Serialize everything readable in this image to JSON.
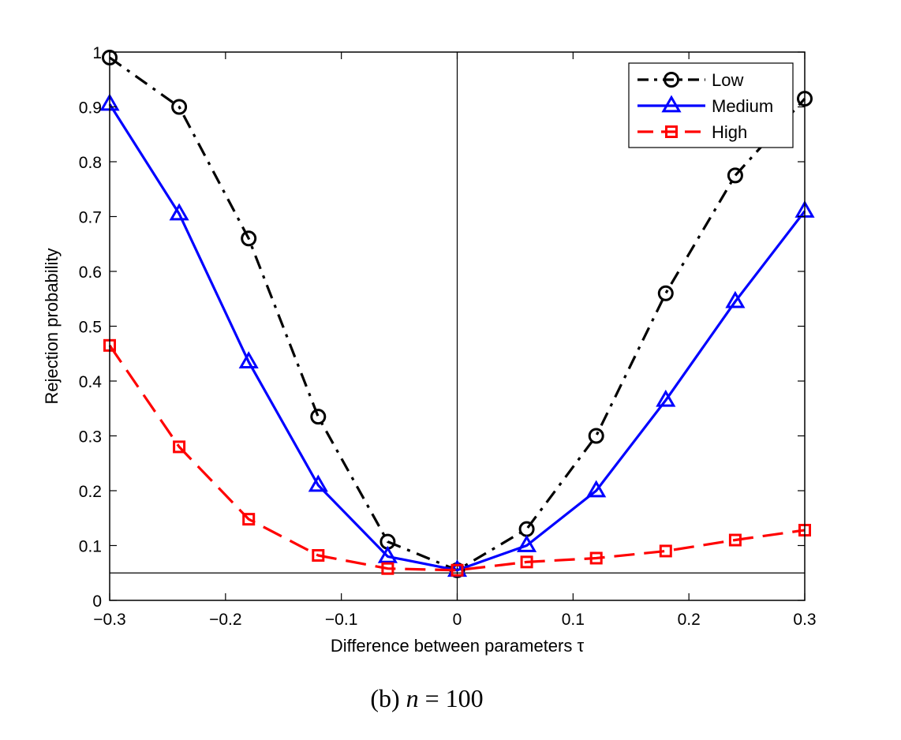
{
  "chart_data": {
    "type": "line",
    "caption_prefix": "(b) ",
    "caption_var": "n",
    "caption_rest": " = 100",
    "xlabel": "Difference between parameters τ",
    "ylabel": "Rejection probability",
    "xlim": [
      -0.3,
      0.3
    ],
    "ylim": [
      0,
      1
    ],
    "x_ticks": [
      -0.3,
      -0.2,
      -0.1,
      0,
      0.1,
      0.2,
      0.3
    ],
    "x_tick_labels": [
      "−0.3",
      "−0.2",
      "−0.1",
      "0",
      "0.1",
      "0.2",
      "0.3"
    ],
    "y_ticks": [
      0,
      0.1,
      0.2,
      0.3,
      0.4,
      0.5,
      0.6,
      0.7,
      0.8,
      0.9,
      1
    ],
    "y_tick_labels": [
      "0",
      "0.1",
      "0.2",
      "0.3",
      "0.4",
      "0.5",
      "0.6",
      "0.7",
      "0.8",
      "0.9",
      "1"
    ],
    "reference_lines": {
      "vertical_x": 0,
      "horizontal_y": 0.05
    },
    "legend_position": "top-right",
    "grid": false,
    "x": [
      -0.3,
      -0.24,
      -0.18,
      -0.12,
      -0.06,
      0,
      0.06,
      0.12,
      0.18,
      0.24,
      0.3
    ],
    "series": [
      {
        "name": "Low",
        "color": "#000000",
        "line_style": "dash-dot",
        "marker": "circle",
        "values": [
          0.99,
          0.9,
          0.66,
          0.335,
          0.107,
          0.055,
          0.13,
          0.3,
          0.56,
          0.775,
          0.915
        ]
      },
      {
        "name": "Medium",
        "color": "#0000ff",
        "line_style": "solid",
        "marker": "triangle",
        "values": [
          0.905,
          0.705,
          0.435,
          0.21,
          0.08,
          0.055,
          0.1,
          0.2,
          0.365,
          0.545,
          0.71
        ]
      },
      {
        "name": "High",
        "color": "#ff0000",
        "line_style": "dashed",
        "marker": "square",
        "values": [
          0.465,
          0.28,
          0.148,
          0.082,
          0.058,
          0.055,
          0.07,
          0.077,
          0.09,
          0.11,
          0.128
        ]
      }
    ]
  }
}
